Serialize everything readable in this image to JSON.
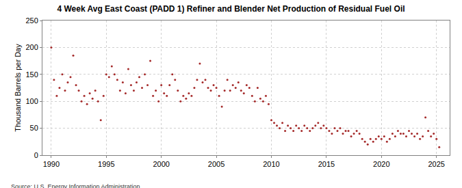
{
  "chart_data": {
    "type": "scatter",
    "title": "4 Week Avg East Coast (PADD 1) Refiner and Blender Net Production of Residual Fuel Oil",
    "y_label": "Thousand Barrels per Day",
    "source": "Source: U.S. Energy Information Administration",
    "x": [
      1990.0,
      1990.25,
      1990.5,
      1990.75,
      1991.0,
      1991.25,
      1991.5,
      1991.75,
      1992.0,
      1992.25,
      1992.5,
      1992.75,
      1993.0,
      1993.25,
      1993.5,
      1993.75,
      1994.0,
      1994.25,
      1994.5,
      1994.75,
      1995.0,
      1995.25,
      1995.5,
      1995.75,
      1996.0,
      1996.25,
      1996.5,
      1996.75,
      1997.0,
      1997.25,
      1997.5,
      1997.75,
      1998.0,
      1998.25,
      1998.5,
      1998.75,
      1999.0,
      1999.25,
      1999.5,
      1999.75,
      2000.0,
      2000.25,
      2000.5,
      2000.75,
      2001.0,
      2001.25,
      2001.5,
      2001.75,
      2002.0,
      2002.25,
      2002.5,
      2002.75,
      2003.0,
      2003.25,
      2003.5,
      2003.75,
      2004.0,
      2004.25,
      2004.5,
      2004.75,
      2005.0,
      2005.25,
      2005.5,
      2005.75,
      2006.0,
      2006.25,
      2006.5,
      2006.75,
      2007.0,
      2007.25,
      2007.5,
      2007.75,
      2008.0,
      2008.25,
      2008.5,
      2008.75,
      2009.0,
      2009.25,
      2009.5,
      2009.75,
      2010.0,
      2010.25,
      2010.5,
      2010.75,
      2011.0,
      2011.25,
      2011.5,
      2011.75,
      2012.0,
      2012.25,
      2012.5,
      2012.75,
      2013.0,
      2013.25,
      2013.5,
      2013.75,
      2014.0,
      2014.25,
      2014.5,
      2014.75,
      2015.0,
      2015.25,
      2015.5,
      2015.75,
      2016.0,
      2016.25,
      2016.5,
      2016.75,
      2017.0,
      2017.25,
      2017.5,
      2017.75,
      2018.0,
      2018.25,
      2018.5,
      2018.75,
      2019.0,
      2019.25,
      2019.5,
      2019.75,
      2020.0,
      2020.25,
      2020.5,
      2020.75,
      2021.0,
      2021.25,
      2021.5,
      2021.75,
      2022.0,
      2022.25,
      2022.5,
      2022.75,
      2023.0,
      2023.25,
      2023.5,
      2023.75,
      2024.0,
      2024.25,
      2024.5,
      2024.75,
      2025.0,
      2025.25
    ],
    "values": [
      200,
      140,
      110,
      125,
      150,
      120,
      135,
      145,
      185,
      130,
      120,
      100,
      110,
      95,
      115,
      105,
      120,
      100,
      65,
      110,
      150,
      145,
      165,
      150,
      140,
      120,
      135,
      115,
      160,
      130,
      120,
      135,
      145,
      125,
      150,
      130,
      175,
      110,
      120,
      100,
      130,
      115,
      110,
      130,
      150,
      140,
      120,
      100,
      110,
      105,
      115,
      110,
      125,
      140,
      170,
      135,
      140,
      125,
      120,
      130,
      125,
      110,
      90,
      120,
      140,
      120,
      130,
      125,
      135,
      120,
      115,
      130,
      125,
      110,
      100,
      125,
      105,
      100,
      110,
      95,
      65,
      60,
      55,
      50,
      60,
      45,
      55,
      50,
      45,
      55,
      50,
      45,
      55,
      50,
      45,
      50,
      55,
      60,
      50,
      55,
      50,
      45,
      40,
      50,
      45,
      50,
      40,
      45,
      45,
      35,
      40,
      45,
      40,
      30,
      25,
      20,
      30,
      25,
      30,
      35,
      30,
      35,
      25,
      30,
      40,
      35,
      45,
      40,
      40,
      35,
      45,
      40,
      35,
      40,
      30,
      35,
      70,
      45,
      35,
      40,
      30,
      15
    ],
    "color": "#a52a2a",
    "marker": "circle",
    "xlim": [
      1989.2,
      2026.2
    ],
    "xticks": [
      1990,
      1995,
      2000,
      2005,
      2010,
      2015,
      2020,
      2025
    ],
    "ylim": [
      0,
      250
    ],
    "yticks": [
      0,
      50,
      100,
      150,
      200,
      250
    ],
    "grid": true
  }
}
